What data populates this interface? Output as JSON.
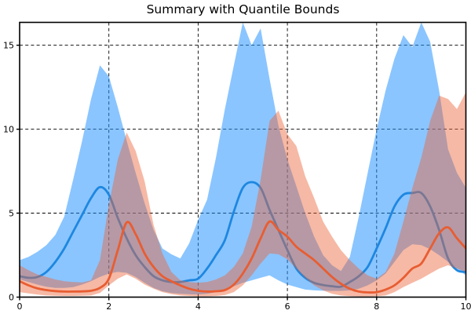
{
  "title": "Summary with Quantile Bounds",
  "background": "#ffffff",
  "chart_data": {
    "type": "line",
    "title": "Summary with Quantile Bounds",
    "xlabel": "",
    "ylabel": "",
    "xlim": [
      0,
      10
    ],
    "ylim": [
      0,
      16.36
    ],
    "xticks": [
      0,
      2,
      4,
      6,
      8,
      10
    ],
    "yticks": [
      0,
      5,
      10,
      15
    ],
    "grid": {
      "on": true,
      "style": "dashed",
      "color": "#000000"
    },
    "legend": null,
    "x": [
      0,
      0.2,
      0.4,
      0.6,
      0.8,
      1.0,
      1.2,
      1.4,
      1.6,
      1.8,
      2.0,
      2.2,
      2.4,
      2.6,
      2.8,
      3.0,
      3.2,
      3.4,
      3.6,
      3.8,
      4.0,
      4.2,
      4.4,
      4.6,
      4.8,
      5.0,
      5.2,
      5.4,
      5.6,
      5.8,
      6.0,
      6.2,
      6.4,
      6.6,
      6.8,
      7.0,
      7.2,
      7.4,
      7.6,
      7.8,
      8.0,
      8.2,
      8.4,
      8.6,
      8.8,
      9.0,
      9.2,
      9.4,
      9.6,
      9.8,
      10.0
    ],
    "series": [
      {
        "name": "series-blue",
        "line_color": "#1e87e0",
        "fill_color": "rgba(30,144,255,0.52)",
        "median": [
          1.25,
          1.15,
          1.2,
          1.5,
          2.1,
          2.9,
          3.9,
          4.9,
          5.9,
          6.55,
          6.1,
          4.7,
          3.5,
          2.5,
          1.8,
          1.25,
          1.0,
          0.9,
          0.9,
          1.0,
          1.1,
          1.7,
          2.5,
          3.4,
          5.1,
          6.5,
          6.85,
          6.5,
          5.2,
          4.0,
          2.8,
          1.7,
          1.15,
          0.85,
          0.72,
          0.65,
          0.62,
          0.9,
          1.25,
          1.8,
          2.9,
          4.1,
          5.4,
          6.1,
          6.2,
          6.2,
          5.4,
          4.0,
          2.3,
          1.6,
          1.5
        ],
        "lo": [
          1.05,
          0.9,
          0.75,
          0.62,
          0.55,
          0.55,
          0.6,
          0.75,
          0.95,
          1.2,
          1.4,
          1.5,
          1.45,
          1.2,
          0.85,
          0.55,
          0.35,
          0.25,
          0.2,
          0.17,
          0.15,
          0.2,
          0.3,
          0.45,
          0.65,
          0.85,
          1.0,
          1.15,
          1.3,
          1.0,
          0.75,
          0.6,
          0.45,
          0.4,
          0.38,
          0.37,
          0.37,
          0.4,
          0.5,
          0.7,
          1.0,
          1.4,
          2.1,
          2.8,
          3.15,
          3.1,
          2.85,
          2.5,
          2.1,
          1.7,
          1.3
        ],
        "hi": [
          2.2,
          2.4,
          2.7,
          3.1,
          3.7,
          4.8,
          7.0,
          9.3,
          11.8,
          13.8,
          13.15,
          11.3,
          9.3,
          7.4,
          5.6,
          4.0,
          2.9,
          2.55,
          2.3,
          3.2,
          4.6,
          5.8,
          8.3,
          11.2,
          13.8,
          16.36,
          15.0,
          16.0,
          13.0,
          10.2,
          8.2,
          6.6,
          5.0,
          3.6,
          2.5,
          1.9,
          1.55,
          2.4,
          4.8,
          7.4,
          10.0,
          12.3,
          14.2,
          15.6,
          14.9,
          16.36,
          15.2,
          12.3,
          8.8,
          7.4,
          6.5
        ]
      },
      {
        "name": "series-orange",
        "line_color": "#e85d32",
        "fill_color": "rgba(235,100,56,0.45)",
        "median": [
          0.95,
          0.7,
          0.52,
          0.42,
          0.36,
          0.33,
          0.33,
          0.34,
          0.38,
          0.55,
          1.1,
          2.8,
          4.45,
          3.75,
          2.6,
          1.8,
          1.25,
          0.95,
          0.7,
          0.5,
          0.38,
          0.33,
          0.35,
          0.42,
          0.75,
          1.4,
          2.3,
          3.5,
          4.5,
          4.0,
          3.6,
          3.0,
          2.6,
          2.2,
          1.7,
          1.2,
          0.8,
          0.5,
          0.33,
          0.28,
          0.3,
          0.45,
          0.7,
          1.15,
          1.7,
          2.0,
          2.9,
          3.8,
          4.15,
          3.5,
          2.9
        ],
        "lo": [
          0.3,
          0.22,
          0.15,
          0.1,
          0.08,
          0.07,
          0.07,
          0.08,
          0.1,
          0.25,
          0.7,
          1.1,
          1.35,
          1.1,
          0.75,
          0.5,
          0.3,
          0.18,
          0.1,
          0.07,
          0.05,
          0.05,
          0.07,
          0.12,
          0.3,
          0.7,
          1.3,
          2.0,
          2.6,
          2.55,
          2.25,
          1.7,
          1.15,
          0.7,
          0.4,
          0.2,
          0.1,
          0.06,
          0.04,
          0.04,
          0.05,
          0.1,
          0.3,
          0.6,
          0.85,
          1.1,
          1.4,
          1.7,
          1.9,
          1.7,
          1.5
        ],
        "hi": [
          1.9,
          1.6,
          1.35,
          1.2,
          1.05,
          0.95,
          0.9,
          0.88,
          1.0,
          2.2,
          5.5,
          8.2,
          9.8,
          8.7,
          6.9,
          4.3,
          2.6,
          1.5,
          1.0,
          0.9,
          0.86,
          0.9,
          1.05,
          1.3,
          1.8,
          2.6,
          4.2,
          7.0,
          10.5,
          11.1,
          9.7,
          9.0,
          7.2,
          5.9,
          4.5,
          3.6,
          2.8,
          2.2,
          1.7,
          1.3,
          1.1,
          1.5,
          2.6,
          4.5,
          6.5,
          8.3,
          10.5,
          12.0,
          11.8,
          11.2,
          12.2
        ]
      }
    ]
  }
}
